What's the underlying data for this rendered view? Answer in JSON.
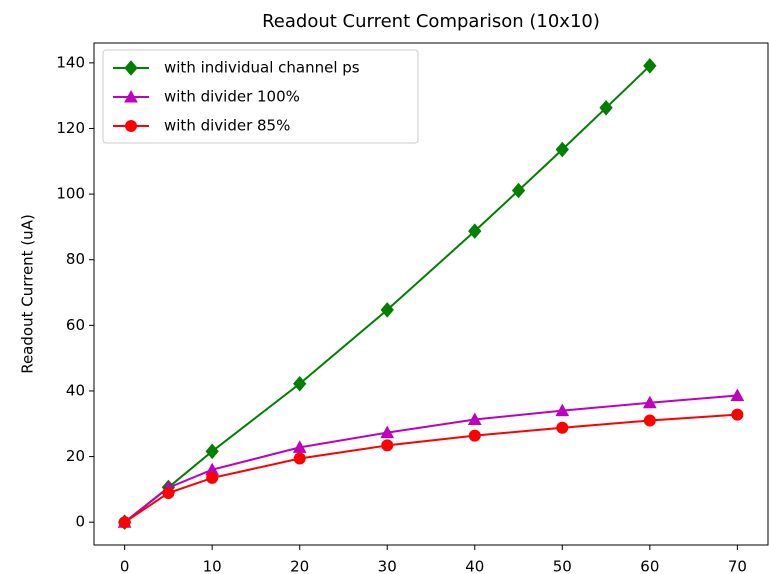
{
  "chart_data": {
    "type": "line",
    "title": "Readout Current Comparison (10x10)",
    "y_label": "Readout Current (uA)",
    "xlim": [
      -3.5,
      73.5
    ],
    "ylim": [
      -6.95,
      146.05
    ],
    "xticks": [
      0,
      10,
      20,
      30,
      40,
      50,
      60,
      70
    ],
    "yticks": [
      0,
      20,
      40,
      60,
      80,
      100,
      120,
      140
    ],
    "legend_position": "upper left",
    "series": [
      {
        "name": "with individual channel ps",
        "color": "#008000",
        "marker": "diamond",
        "x": [
          0,
          5,
          10,
          20,
          30,
          40,
          45,
          50,
          55,
          60
        ],
        "values": [
          0,
          10.6,
          21.6,
          42.2,
          64.7,
          88.7,
          101.1,
          113.6,
          126.3,
          139.1
        ]
      },
      {
        "name": "with divider 100%",
        "color": "#bf00bf",
        "marker": "triangle",
        "x": [
          0,
          5,
          10,
          20,
          30,
          40,
          50,
          60,
          70
        ],
        "values": [
          0,
          10.5,
          16.0,
          22.8,
          27.3,
          31.3,
          34.0,
          36.4,
          38.6
        ]
      },
      {
        "name": "with divider 85%",
        "color": "#ff0000",
        "marker": "circle",
        "x": [
          0,
          5,
          10,
          20,
          30,
          40,
          50,
          60,
          70
        ],
        "values": [
          0,
          8.9,
          13.5,
          19.4,
          23.4,
          26.4,
          28.8,
          31.0,
          32.8
        ]
      }
    ]
  }
}
